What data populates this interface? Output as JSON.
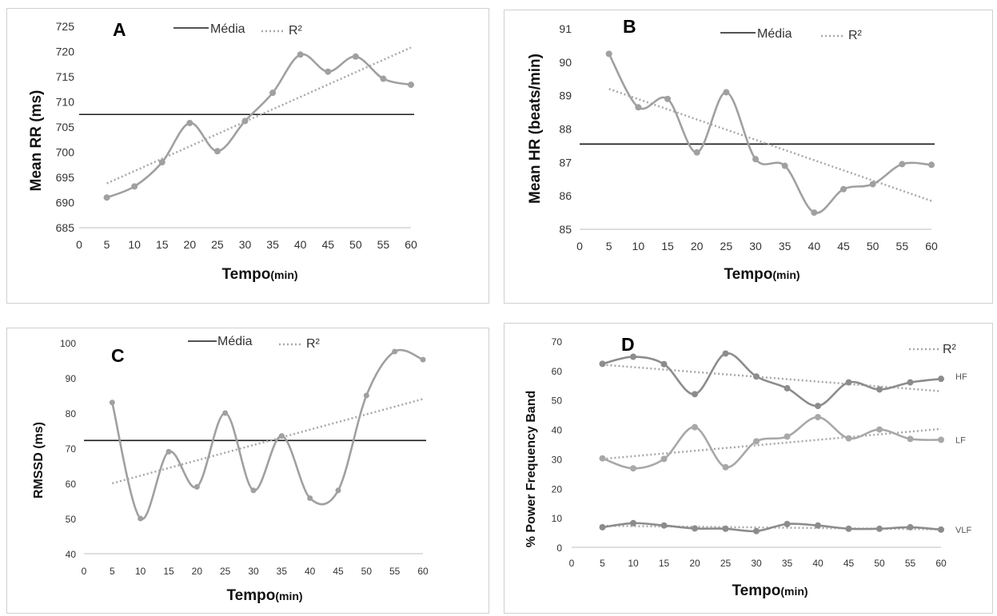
{
  "chart_data": [
    {
      "type": "line",
      "panel": "A",
      "ylabel": "Mean RR (ms)",
      "xlabel": "Tempo",
      "xlabel_unit": "(min)",
      "xlim": [
        0,
        60
      ],
      "ylim": [
        685,
        725
      ],
      "xticks": [
        0,
        5,
        10,
        15,
        20,
        25,
        30,
        35,
        40,
        45,
        50,
        55,
        60
      ],
      "yticks": [
        685,
        690,
        695,
        700,
        705,
        710,
        715,
        720,
        725
      ],
      "legend": [
        {
          "label": "Média",
          "style": "solid"
        },
        {
          "label": "R²",
          "style": "dotted"
        }
      ],
      "legend_position": "top",
      "grid": false,
      "series": [
        {
          "x": [
            5,
            10,
            15,
            20,
            25,
            30,
            35,
            40,
            45,
            50,
            55,
            60
          ],
          "values": [
            691.0,
            693.2,
            698.0,
            705.8,
            700.2,
            706.2,
            711.8,
            719.4,
            716.0,
            719.0,
            714.6,
            713.4
          ],
          "color": "#a0a0a0",
          "style": "smooth"
        }
      ],
      "mean": 707.5,
      "trend": {
        "x": [
          5,
          60
        ],
        "y": [
          693.8,
          720.8
        ]
      }
    },
    {
      "type": "line",
      "panel": "B",
      "ylabel": "Mean HR (beats/min)",
      "xlabel": "Tempo",
      "xlabel_unit": "(min)",
      "xlim": [
        0,
        60
      ],
      "ylim": [
        85,
        91
      ],
      "xticks": [
        0,
        5,
        10,
        15,
        20,
        25,
        30,
        35,
        40,
        45,
        50,
        55,
        60
      ],
      "yticks": [
        85,
        86,
        87,
        88,
        89,
        90,
        91
      ],
      "legend": [
        {
          "label": "Média",
          "style": "solid"
        },
        {
          "label": "R²",
          "style": "dotted"
        }
      ],
      "legend_position": "top",
      "grid": false,
      "series": [
        {
          "x": [
            5,
            10,
            15,
            20,
            25,
            30,
            35,
            40,
            45,
            50,
            55,
            60
          ],
          "values": [
            90.25,
            88.65,
            88.9,
            87.3,
            89.1,
            87.1,
            86.9,
            85.5,
            86.2,
            86.35,
            86.95,
            86.93
          ],
          "color": "#a0a0a0",
          "style": "smooth"
        }
      ],
      "mean": 87.55,
      "trend": {
        "x": [
          5,
          60
        ],
        "y": [
          89.2,
          85.85
        ]
      }
    },
    {
      "type": "line",
      "panel": "C",
      "ylabel": "RMSSD (ms)",
      "xlabel": "Tempo",
      "xlabel_unit": "(min)",
      "xlim": [
        0,
        60
      ],
      "ylim": [
        40,
        100
      ],
      "xticks": [
        0,
        5,
        10,
        15,
        20,
        25,
        30,
        35,
        40,
        45,
        50,
        55,
        60
      ],
      "yticks": [
        40,
        50,
        60,
        70,
        80,
        90,
        100
      ],
      "legend": [
        {
          "label": "Média",
          "style": "solid"
        },
        {
          "label": "R²",
          "style": "dotted"
        }
      ],
      "legend_position": "top",
      "grid": false,
      "series": [
        {
          "x": [
            5,
            10,
            15,
            20,
            25,
            30,
            35,
            40,
            45,
            50,
            55,
            60
          ],
          "values": [
            83.0,
            50.0,
            69.0,
            59.0,
            80.0,
            58.0,
            73.5,
            55.8,
            58.0,
            85.0,
            97.5,
            95.2
          ],
          "color": "#a0a0a0",
          "style": "smooth"
        }
      ],
      "mean": 72.2,
      "trend": {
        "x": [
          5,
          60
        ],
        "y": [
          60.0,
          84.0
        ]
      }
    },
    {
      "type": "line",
      "panel": "D",
      "ylabel": "% Power Frequency Band",
      "xlabel": "Tempo",
      "xlabel_unit": "(min)",
      "xlim": [
        0,
        60
      ],
      "ylim": [
        0,
        70
      ],
      "xticks": [
        0,
        5,
        10,
        15,
        20,
        25,
        30,
        35,
        40,
        45,
        50,
        55,
        60
      ],
      "yticks": [
        0,
        10,
        20,
        30,
        40,
        50,
        60,
        70
      ],
      "legend": [
        {
          "label": "R²",
          "style": "dotted"
        }
      ],
      "legend_position": "top-right",
      "grid": false,
      "series": [
        {
          "name": "HF",
          "x": [
            5,
            10,
            15,
            20,
            25,
            30,
            35,
            40,
            45,
            50,
            55,
            60
          ],
          "values": [
            62.3,
            64.7,
            62.2,
            52.0,
            65.8,
            58.0,
            54.0,
            48.0,
            56.0,
            53.6,
            56.0,
            57.2
          ],
          "color": "#8c8c8c",
          "style": "smooth",
          "trend": {
            "x": [
              5,
              60
            ],
            "y": [
              62.0,
              53.0
            ]
          }
        },
        {
          "name": "LF",
          "x": [
            5,
            10,
            15,
            20,
            25,
            30,
            35,
            40,
            45,
            50,
            55,
            60
          ],
          "values": [
            30.2,
            26.8,
            30.0,
            40.8,
            27.2,
            36.0,
            37.6,
            44.2,
            37.0,
            40.0,
            36.8,
            36.5
          ],
          "color": "#a8a8a8",
          "style": "smooth",
          "trend": {
            "x": [
              5,
              60
            ],
            "y": [
              30.0,
              40.2
            ]
          }
        },
        {
          "name": "VLF",
          "x": [
            5,
            10,
            15,
            20,
            25,
            30,
            35,
            40,
            45,
            50,
            55,
            60
          ],
          "values": [
            6.8,
            8.2,
            7.4,
            6.4,
            6.3,
            5.5,
            7.9,
            7.4,
            6.3,
            6.3,
            6.8,
            6.0
          ],
          "color": "#8c8c8c",
          "style": "smooth",
          "trend": {
            "x": [
              5,
              60
            ],
            "y": [
              7.3,
              6.1
            ]
          }
        }
      ]
    }
  ]
}
